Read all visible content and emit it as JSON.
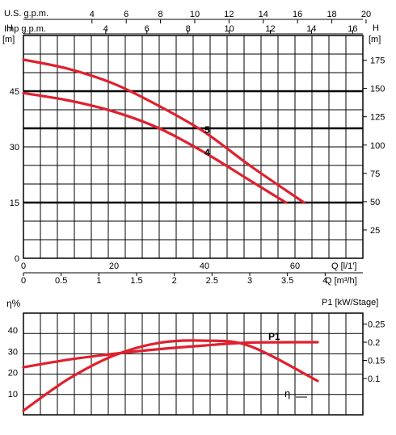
{
  "chart_data": [
    {
      "type": "line",
      "title": "",
      "top_axes": [
        {
          "label": "U.S. g.p.m.",
          "ticks": [
            4,
            6,
            8,
            10,
            12,
            14,
            16,
            18,
            20
          ]
        },
        {
          "label": "Imp g.p.m.",
          "ticks": [
            4,
            6,
            8,
            10,
            12,
            14,
            16
          ]
        }
      ],
      "left_axis": {
        "unit_label": "H",
        "unit": "[m]",
        "ticks": [
          0,
          15,
          30,
          45
        ],
        "range": [
          0,
          60
        ]
      },
      "right_axis": {
        "unit_label": "H",
        "unit": "[m]",
        "ticks": [
          25,
          50,
          75,
          100,
          125,
          150,
          175
        ],
        "range": [
          0,
          196.8
        ]
      },
      "x_axes": [
        {
          "label": "Q [l/1']",
          "ticks": [
            0,
            20,
            40,
            60
          ],
          "range": [
            0,
            75
          ]
        },
        {
          "label": "Q [m³/h]",
          "ticks": [
            0,
            0.5,
            1,
            1.5,
            2,
            2.5,
            3,
            3.5,
            4
          ],
          "range": [
            0,
            4.5
          ]
        }
      ],
      "grid": true,
      "reference_lines_y": [
        15,
        35,
        45
      ],
      "series": [
        {
          "name": "5",
          "color": "#e0202e",
          "x": [
            0,
            10,
            20,
            30,
            40,
            50,
            62
          ],
          "y": [
            53.5,
            51,
            47,
            41,
            34,
            25,
            15
          ]
        },
        {
          "name": "4",
          "color": "#e0202e",
          "x": [
            0,
            10,
            20,
            30,
            40,
            50,
            58
          ],
          "y": [
            44.5,
            42.5,
            39.5,
            35,
            28.5,
            21,
            15
          ]
        }
      ]
    },
    {
      "type": "line",
      "title": "",
      "left_axis": {
        "label": "η%",
        "ticks": [
          10,
          20,
          30,
          40
        ],
        "range": [
          0,
          48
        ]
      },
      "right_axis": {
        "label": "P1 [kW/Stage]",
        "ticks": [
          0.1,
          0.15,
          0.2,
          0.25
        ],
        "range": [
          0,
          0.28
        ]
      },
      "x_range": [
        0,
        75
      ],
      "grid": true,
      "series": [
        {
          "name": "P1",
          "color": "#e0202e",
          "x": [
            0,
            10,
            20,
            30,
            40,
            50,
            65
          ],
          "y": [
            0.131,
            0.152,
            0.168,
            0.181,
            0.191,
            0.199,
            0.2
          ]
        },
        {
          "name": "η",
          "color": "#e0202e",
          "x": [
            0,
            10,
            20,
            30,
            40,
            50,
            65
          ],
          "y": [
            2,
            17,
            28,
            34,
            35,
            32.5,
            16
          ]
        }
      ]
    }
  ]
}
